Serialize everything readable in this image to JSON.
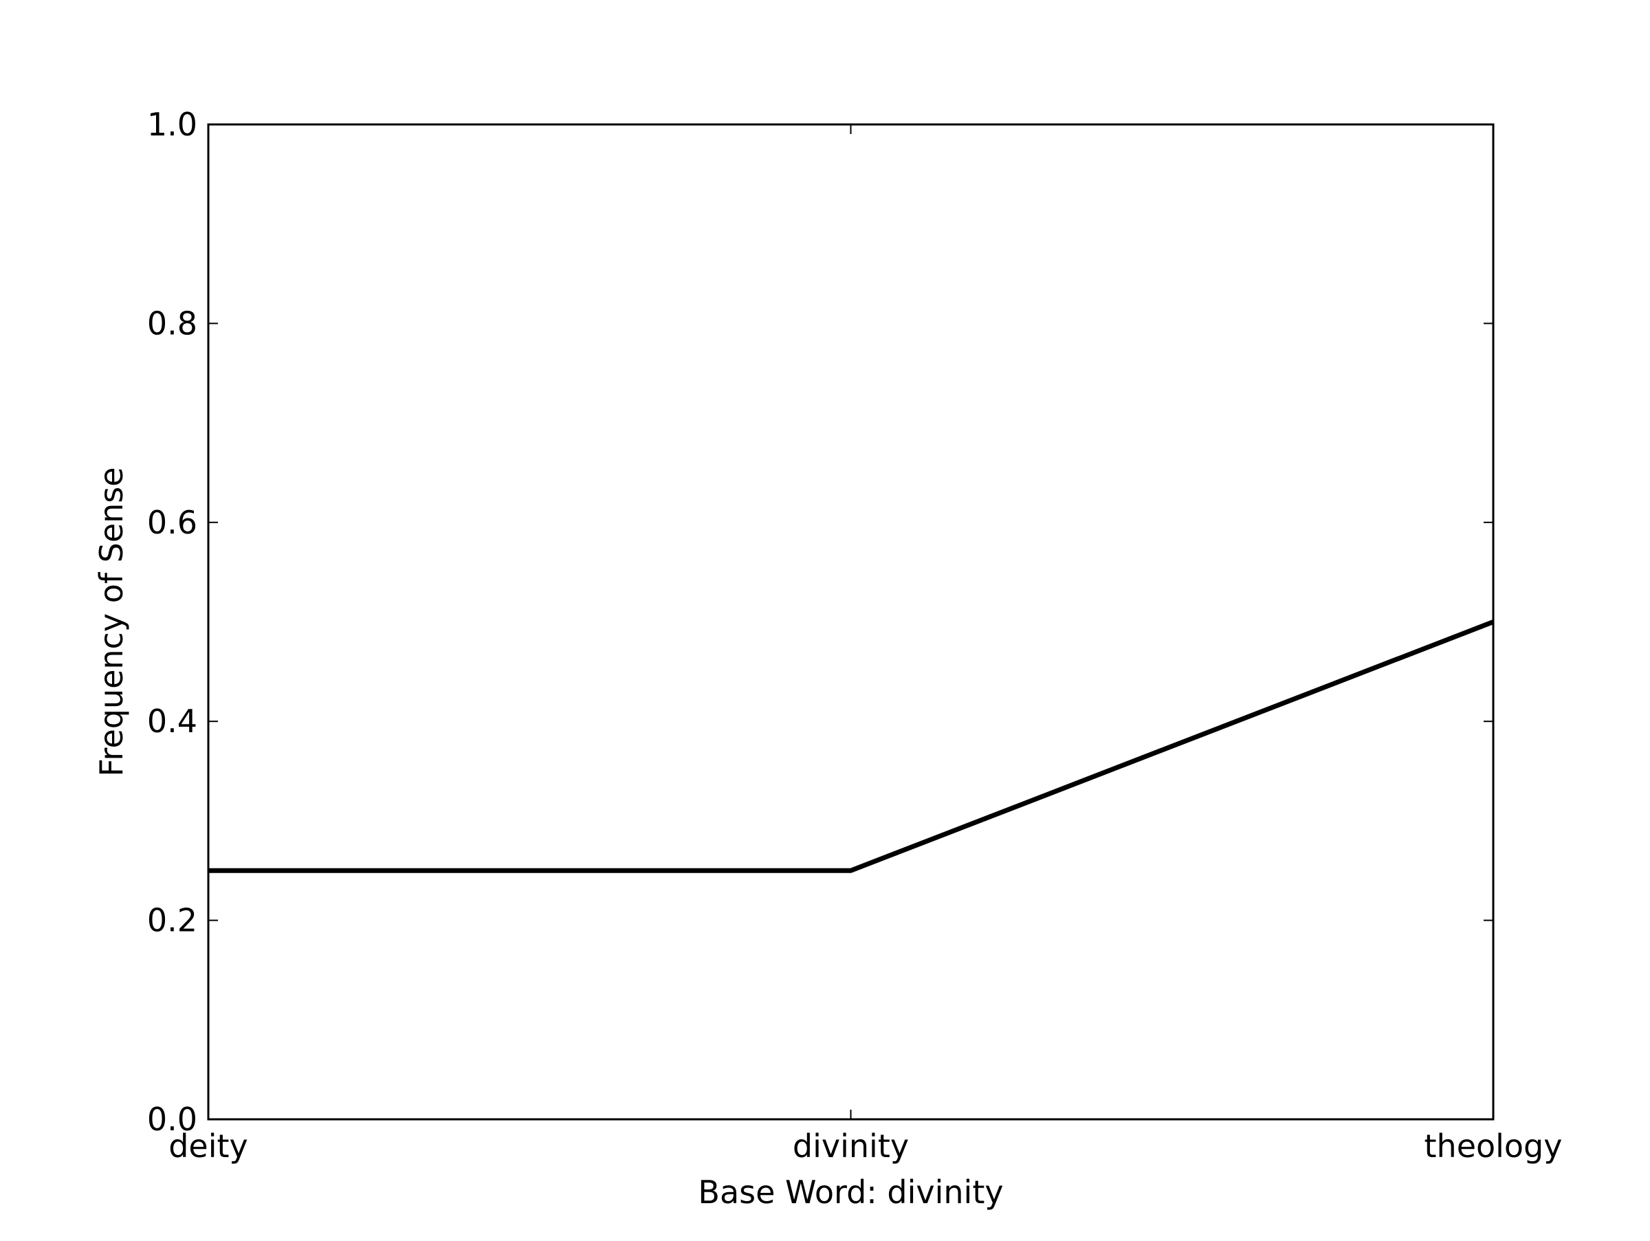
{
  "chart_data": {
    "type": "line",
    "categories": [
      "deity",
      "divinity",
      "theology"
    ],
    "series": [
      {
        "values": [
          0.25,
          0.25,
          0.5
        ]
      }
    ],
    "xlabel": "Base Word: divinity",
    "ylabel": "Frequency of Sense",
    "ylim": [
      0.0,
      1.0
    ],
    "yticks": [
      "0.0",
      "0.2",
      "0.4",
      "0.6",
      "0.8",
      "1.0"
    ],
    "grid": false,
    "line_color": "#000000"
  }
}
